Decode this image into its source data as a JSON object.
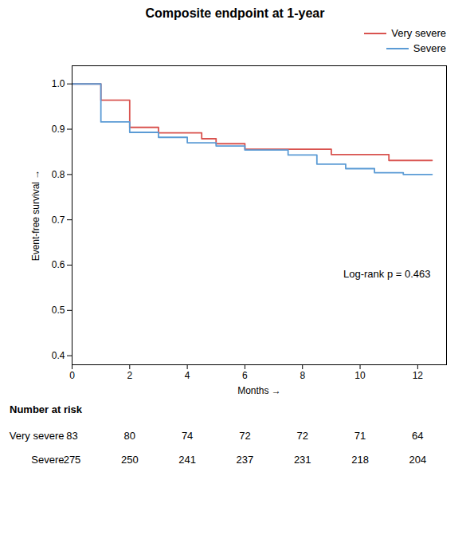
{
  "chart_data": {
    "type": "step",
    "title": "Composite endpoint at 1-year",
    "xlabel": "Months",
    "ylabel": "Event-free survival",
    "xlim": [
      0,
      13
    ],
    "ylim": [
      0.38,
      1.04
    ],
    "xticks": [
      0,
      2,
      4,
      6,
      8,
      10,
      12
    ],
    "yticks": [
      0.4,
      0.5,
      0.6,
      0.7,
      0.8,
      0.9,
      {
        "value": 1.0,
        "label": "1.0"
      }
    ],
    "legend": "upper right",
    "annotations": [
      "Log-rank p = 0.463"
    ],
    "series": [
      {
        "name": "Very severe",
        "color": "#d9534f",
        "x": [
          0,
          1.0,
          1.0,
          2.0,
          2.0,
          3.0,
          3.0,
          4.5,
          4.5,
          5.0,
          5.0,
          6.0,
          6.0,
          9.0,
          9.0,
          11.0,
          11.0,
          12.5
        ],
        "values": [
          1.0,
          1.0,
          0.964,
          0.964,
          0.904,
          0.904,
          0.892,
          0.892,
          0.879,
          0.879,
          0.868,
          0.868,
          0.856,
          0.856,
          0.844,
          0.844,
          0.831,
          0.831
        ]
      },
      {
        "name": "Severe",
        "color": "#5b9bd5",
        "x": [
          0,
          1.0,
          1.0,
          2.0,
          2.0,
          3.0,
          3.0,
          4.0,
          4.0,
          5.0,
          5.0,
          6.0,
          6.0,
          7.5,
          7.5,
          8.5,
          8.5,
          9.5,
          9.5,
          10.5,
          10.5,
          11.5,
          11.5,
          12.5
        ],
        "values": [
          1.0,
          1.0,
          0.916,
          0.916,
          0.893,
          0.893,
          0.882,
          0.882,
          0.87,
          0.87,
          0.863,
          0.863,
          0.854,
          0.854,
          0.843,
          0.843,
          0.823,
          0.823,
          0.813,
          0.813,
          0.804,
          0.804,
          0.8,
          0.8
        ]
      }
    ],
    "number_at_risk": {
      "title": "Number at risk",
      "x": [
        0,
        2,
        4,
        6,
        8,
        10,
        12
      ],
      "rows": [
        {
          "name": "Very severe",
          "values": [
            83,
            80,
            74,
            72,
            72,
            71,
            64
          ]
        },
        {
          "name": "Severe",
          "values": [
            275,
            250,
            241,
            237,
            231,
            218,
            204
          ]
        }
      ]
    }
  }
}
